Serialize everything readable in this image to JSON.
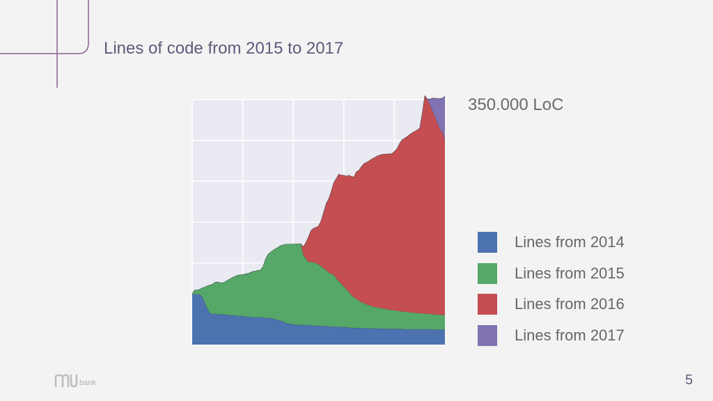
{
  "slide": {
    "title": "Lines of code from 2015 to 2017",
    "annotation": "350.000 LoC",
    "page_number": "5",
    "logo_text": "bank"
  },
  "colors": {
    "background": "#f3f3f3",
    "plot_background": "#eaeaf2",
    "accent_line": "#8b5f93",
    "title": "#5e5a7a"
  },
  "chart_data": {
    "type": "area",
    "stacked": true,
    "title": "",
    "xlabel": "",
    "ylabel": "",
    "x": [
      0,
      1,
      2,
      3,
      4,
      5,
      6,
      7,
      8,
      9,
      10,
      11,
      12,
      13,
      14,
      15,
      16,
      17,
      18,
      19,
      20,
      21,
      22,
      23,
      24,
      25,
      26,
      27,
      28,
      29,
      30,
      31,
      32,
      33,
      34,
      35,
      36,
      37,
      38,
      39,
      40,
      41,
      42,
      43,
      44,
      45,
      46,
      47,
      48,
      49,
      50,
      51,
      52,
      53,
      54,
      55,
      56,
      57,
      58,
      59,
      60,
      61,
      62,
      63,
      64,
      65,
      66,
      67,
      68,
      69,
      70,
      71,
      72,
      73,
      74,
      75,
      76,
      77,
      78,
      79,
      80,
      81,
      82,
      83,
      84,
      85,
      86,
      87,
      88,
      89,
      90,
      91,
      92,
      93,
      94,
      95,
      96,
      97,
      98,
      99,
      100
    ],
    "xlim": [
      0,
      100
    ],
    "ylim": [
      0,
      350000
    ],
    "x_tick_count": 6,
    "y_tick_count": 7,
    "grid": true,
    "series": [
      {
        "name": "Lines from 2014",
        "color": "#4c72b0",
        "values": [
          72000,
          72000,
          72000,
          72000,
          68000,
          60000,
          52000,
          45000,
          44000,
          44000,
          43500,
          43500,
          43000,
          43000,
          42500,
          42000,
          42000,
          41500,
          41000,
          41000,
          41000,
          40000,
          40000,
          39500,
          39000,
          39000,
          39000,
          39000,
          38500,
          38000,
          38000,
          38000,
          37000,
          36000,
          35000,
          34000,
          33000,
          31000,
          30000,
          29500,
          29000,
          28500,
          28000,
          28000,
          28000,
          28000,
          28000,
          27500,
          27000,
          27000,
          27000,
          26500,
          26500,
          26500,
          26000,
          26000,
          26000,
          25500,
          25500,
          25000,
          25000,
          25000,
          24500,
          24000,
          24000,
          24000,
          24000,
          23500,
          23500,
          23500,
          23500,
          23000,
          23000,
          23000,
          23000,
          23000,
          23000,
          22500,
          22500,
          22500,
          22500,
          22500,
          22500,
          22500,
          22000,
          22000,
          22000,
          22000,
          22000,
          22000,
          22000,
          22000,
          22000,
          22000,
          22000,
          21500,
          21500,
          21500,
          21500,
          21500,
          21500
        ]
      },
      {
        "name": "Lines from 2015",
        "color": "#55a868",
        "values": [
          1000,
          6000,
          6000,
          7000,
          13000,
          22000,
          32000,
          40000,
          42000,
          45000,
          46000,
          45000,
          45000,
          47000,
          49500,
          52000,
          54000,
          56000,
          58000,
          58500,
          59000,
          61000,
          61500,
          63500,
          65500,
          66000,
          67000,
          67500,
          72500,
          84000,
          91000,
          94000,
          97500,
          101000,
          104000,
          107500,
          109500,
          112500,
          113500,
          114000,
          114500,
          115500,
          116000,
          116000,
          100000,
          95000,
          90000,
          90500,
          90500,
          89000,
          87500,
          85500,
          82500,
          80000,
          77000,
          75500,
          73500,
          69500,
          65000,
          62000,
          58000,
          54500,
          50500,
          47000,
          43500,
          41000,
          39000,
          37000,
          36000,
          34000,
          33000,
          32000,
          31000,
          30000,
          29500,
          29000,
          28500,
          28000,
          27500,
          27000,
          26500,
          26000,
          25500,
          25000,
          25000,
          24500,
          24000,
          24000,
          23500,
          23000,
          23000,
          22500,
          22500,
          22000,
          22000,
          22000,
          21500,
          21500,
          21000,
          21000,
          21000
        ]
      },
      {
        "name": "Lines from 2016",
        "color": "#c44e52",
        "values": [
          0,
          0,
          0,
          0,
          0,
          0,
          0,
          0,
          0,
          0,
          0,
          0,
          0,
          0,
          0,
          0,
          0,
          0,
          0,
          0,
          0,
          0,
          0,
          0,
          0,
          0,
          0,
          0,
          0,
          0,
          0,
          0,
          0,
          0,
          0,
          0,
          0,
          0,
          0,
          0,
          0,
          0,
          0,
          0,
          12000,
          23000,
          36000,
          45000,
          48500,
          51500,
          55000,
          65000,
          80000,
          95000,
          105000,
          117000,
          132000,
          142000,
          153000,
          155000,
          159000,
          161000,
          167000,
          169000,
          172000,
          182000,
          186000,
          194000,
          199000,
          203000,
          206000,
          210000,
          213000,
          216000,
          218000,
          219500,
          220500,
          221500,
          222500,
          223000,
          227000,
          231000,
          239000,
          245000,
          247500,
          250500,
          254000,
          256500,
          259000,
          261500,
          264000,
          285000,
          311000,
          306500,
          299500,
          291500,
          283000,
          273500,
          266000,
          260500,
          251500
        ]
      },
      {
        "name": "Lines from 2017",
        "color": "#8172b2",
        "values": [
          0,
          0,
          0,
          0,
          0,
          0,
          0,
          0,
          0,
          0,
          0,
          0,
          0,
          0,
          0,
          0,
          0,
          0,
          0,
          0,
          0,
          0,
          0,
          0,
          0,
          0,
          0,
          0,
          0,
          0,
          0,
          0,
          0,
          0,
          0,
          0,
          0,
          0,
          0,
          0,
          0,
          0,
          0,
          0,
          0,
          0,
          0,
          0,
          0,
          0,
          0,
          0,
          0,
          0,
          0,
          0,
          0,
          0,
          0,
          0,
          0,
          0,
          0,
          0,
          0,
          0,
          0,
          0,
          0,
          0,
          0,
          0,
          0,
          0,
          0,
          0,
          0,
          0,
          0,
          0,
          0,
          0,
          0,
          0,
          0,
          0,
          0,
          0,
          0,
          0,
          0,
          0,
          0,
          500,
          7000,
          17000,
          26000,
          35000,
          43000,
          49000,
          61000
        ]
      }
    ]
  }
}
